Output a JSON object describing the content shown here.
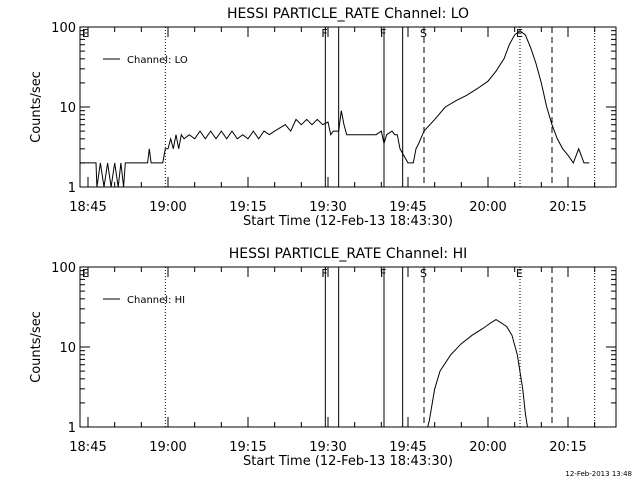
{
  "chart_data": [
    {
      "type": "line",
      "title": "HESSI PARTICLE_RATE Channel: LO",
      "xlabel": "Start Time (12-Feb-13 18:43:30)",
      "ylabel": "Counts/sec",
      "y_scale": "log",
      "xlim": [
        "18:43:30",
        "20:24:00"
      ],
      "ylim": [
        1,
        100
      ],
      "x_ticks": [
        "18:45",
        "19:00",
        "19:15",
        "19:30",
        "19:45",
        "20:00",
        "20:15"
      ],
      "y_ticks": [
        "1",
        "10",
        "100"
      ],
      "grid": false,
      "legend": {
        "position": "top-left",
        "entries": [
          "Channel: LO"
        ]
      },
      "series": [
        {
          "name": "Channel: LO",
          "points": [
            [
              "18:43:30",
              2.0
            ],
            [
              "18:46:30",
              2.0
            ],
            [
              "18:46:40",
              1.0
            ],
            [
              "18:47:20",
              2.0
            ],
            [
              "18:48:00",
              1.0
            ],
            [
              "18:48:40",
              2.0
            ],
            [
              "18:49:20",
              1.0
            ],
            [
              "18:50:00",
              2.0
            ],
            [
              "18:50:40",
              1.0
            ],
            [
              "18:51:10",
              2.0
            ],
            [
              "18:51:40",
              1.0
            ],
            [
              "18:52:00",
              2.0
            ],
            [
              "18:54:00",
              2.0
            ],
            [
              "18:55:00",
              2.0
            ],
            [
              "18:56:10",
              2.0
            ],
            [
              "18:56:30",
              3.0
            ],
            [
              "18:56:50",
              2.0
            ],
            [
              "18:58:00",
              2.0
            ],
            [
              "18:59:00",
              2.0
            ],
            [
              "18:59:30",
              3.0
            ],
            [
              "19:00:00",
              3.0
            ],
            [
              "19:00:30",
              4.0
            ],
            [
              "19:01:00",
              3.0
            ],
            [
              "19:01:30",
              4.5
            ],
            [
              "19:02:00",
              3.0
            ],
            [
              "19:02:30",
              4.5
            ],
            [
              "19:03:00",
              4.0
            ],
            [
              "19:04:00",
              4.5
            ],
            [
              "19:05:00",
              4.0
            ],
            [
              "19:06:00",
              5.0
            ],
            [
              "19:07:00",
              4.0
            ],
            [
              "19:08:00",
              5.0
            ],
            [
              "19:09:00",
              4.0
            ],
            [
              "19:10:00",
              5.0
            ],
            [
              "19:11:00",
              4.0
            ],
            [
              "19:12:00",
              5.0
            ],
            [
              "19:13:00",
              4.0
            ],
            [
              "19:14:00",
              4.5
            ],
            [
              "19:15:00",
              4.0
            ],
            [
              "19:16:00",
              5.0
            ],
            [
              "19:17:00",
              4.0
            ],
            [
              "19:18:00",
              5.0
            ],
            [
              "19:19:00",
              4.5
            ],
            [
              "19:20:00",
              5.0
            ],
            [
              "19:21:00",
              5.5
            ],
            [
              "19:22:00",
              6.0
            ],
            [
              "19:23:00",
              5.0
            ],
            [
              "19:24:00",
              7.0
            ],
            [
              "19:25:00",
              6.0
            ],
            [
              "19:26:00",
              7.0
            ],
            [
              "19:27:00",
              6.0
            ],
            [
              "19:28:00",
              7.0
            ],
            [
              "19:29:00",
              6.0
            ],
            [
              "19:30:00",
              6.5
            ],
            [
              "19:30:30",
              4.5
            ],
            [
              "19:31:00",
              5.0
            ],
            [
              "19:32:00",
              5.0
            ],
            [
              "19:32:30",
              9.0
            ],
            [
              "19:33:00",
              6.0
            ],
            [
              "19:33:30",
              4.5
            ],
            [
              "19:35:00",
              4.5
            ],
            [
              "19:37:00",
              4.5
            ],
            [
              "19:39:00",
              4.5
            ],
            [
              "19:40:00",
              5.0
            ],
            [
              "19:40:30",
              3.5
            ],
            [
              "19:41:00",
              4.5
            ],
            [
              "19:42:00",
              5.0
            ],
            [
              "19:42:30",
              4.5
            ],
            [
              "19:43:00",
              4.5
            ],
            [
              "19:43:30",
              3.0
            ],
            [
              "19:45:00",
              2.0
            ],
            [
              "19:46:00",
              2.0
            ],
            [
              "19:46:30",
              3.0
            ],
            [
              "19:47:00",
              3.5
            ],
            [
              "19:48:00",
              5.0
            ],
            [
              "19:50:00",
              7.0
            ],
            [
              "19:52:00",
              10.0
            ],
            [
              "19:54:00",
              12.0
            ],
            [
              "19:56:00",
              14.0
            ],
            [
              "19:58:00",
              17.0
            ],
            [
              "20:00:00",
              21.0
            ],
            [
              "20:01:30",
              28.0
            ],
            [
              "20:03:00",
              40.0
            ],
            [
              "20:04:00",
              60.0
            ],
            [
              "20:05:00",
              80.0
            ],
            [
              "20:06:00",
              90.0
            ],
            [
              "20:07:00",
              80.0
            ],
            [
              "20:08:00",
              55.0
            ],
            [
              "20:09:00",
              35.0
            ],
            [
              "20:10:00",
              20.0
            ],
            [
              "20:11:00",
              10.0
            ],
            [
              "20:12:00",
              6.0
            ],
            [
              "20:13:00",
              4.0
            ],
            [
              "20:14:00",
              3.0
            ],
            [
              "20:15:00",
              2.5
            ],
            [
              "20:16:00",
              2.0
            ],
            [
              "20:17:00",
              3.0
            ],
            [
              "20:18:00",
              2.0
            ],
            [
              "20:19:00",
              2.0
            ]
          ]
        }
      ],
      "annotations": [
        {
          "x": "18:43:30",
          "label": "E",
          "line": "none"
        },
        {
          "x": "18:59:30",
          "label": "",
          "line": "dotted"
        },
        {
          "x": "19:29:30",
          "label": "F",
          "line": "solid"
        },
        {
          "x": "19:32:00",
          "label": "",
          "line": "solid"
        },
        {
          "x": "19:40:30",
          "label": "F",
          "line": "solid"
        },
        {
          "x": "19:44:00",
          "label": "",
          "line": "solid"
        },
        {
          "x": "19:48:00",
          "label": "S",
          "line": "dashed"
        },
        {
          "x": "20:06:00",
          "label": "E",
          "line": "dotted"
        },
        {
          "x": "20:12:00",
          "label": "",
          "line": "dashed"
        },
        {
          "x": "20:20:00",
          "label": "",
          "line": "dotted"
        }
      ]
    },
    {
      "type": "line",
      "title": "HESSI PARTICLE_RATE Channel: HI",
      "xlabel": "Start Time (12-Feb-13 18:43:30)",
      "ylabel": "Counts/sec",
      "y_scale": "log",
      "xlim": [
        "18:43:30",
        "20:24:00"
      ],
      "ylim": [
        1,
        100
      ],
      "x_ticks": [
        "18:45",
        "19:00",
        "19:15",
        "19:30",
        "19:45",
        "20:00",
        "20:15"
      ],
      "y_ticks": [
        "1",
        "10",
        "100"
      ],
      "grid": false,
      "legend": {
        "position": "top-left",
        "entries": [
          "Channel: HI"
        ]
      },
      "series": [
        {
          "name": "Channel: HI",
          "points": [
            [
              "19:48:30",
              0.9
            ],
            [
              "19:49:00",
              1.2
            ],
            [
              "19:50:00",
              3.0
            ],
            [
              "19:51:00",
              5.0
            ],
            [
              "19:53:00",
              8.0
            ],
            [
              "19:55:00",
              11.0
            ],
            [
              "19:57:00",
              14.0
            ],
            [
              "19:59:00",
              17.0
            ],
            [
              "20:00:30",
              20.0
            ],
            [
              "20:01:30",
              22.0
            ],
            [
              "20:02:30",
              20.0
            ],
            [
              "20:03:30",
              18.0
            ],
            [
              "20:04:30",
              14.0
            ],
            [
              "20:05:30",
              8.0
            ],
            [
              "20:06:30",
              3.0
            ],
            [
              "20:07:00",
              1.5
            ],
            [
              "20:07:30",
              0.9
            ]
          ]
        }
      ],
      "annotations": [
        {
          "x": "18:43:30",
          "label": "E",
          "line": "none"
        },
        {
          "x": "18:59:30",
          "label": "",
          "line": "dotted"
        },
        {
          "x": "19:29:30",
          "label": "F",
          "line": "solid"
        },
        {
          "x": "19:32:00",
          "label": "",
          "line": "solid"
        },
        {
          "x": "19:40:30",
          "label": "F",
          "line": "solid"
        },
        {
          "x": "19:44:00",
          "label": "",
          "line": "solid"
        },
        {
          "x": "19:48:00",
          "label": "S",
          "line": "dashed"
        },
        {
          "x": "20:06:00",
          "label": "E",
          "line": "dotted"
        },
        {
          "x": "20:12:00",
          "label": "",
          "line": "dashed"
        },
        {
          "x": "20:20:00",
          "label": "",
          "line": "dotted"
        }
      ]
    }
  ],
  "footer": {
    "timestamp": "12-Feb-2013 13:48"
  },
  "colors": {
    "background": "#ffffff",
    "foreground": "#000000"
  }
}
